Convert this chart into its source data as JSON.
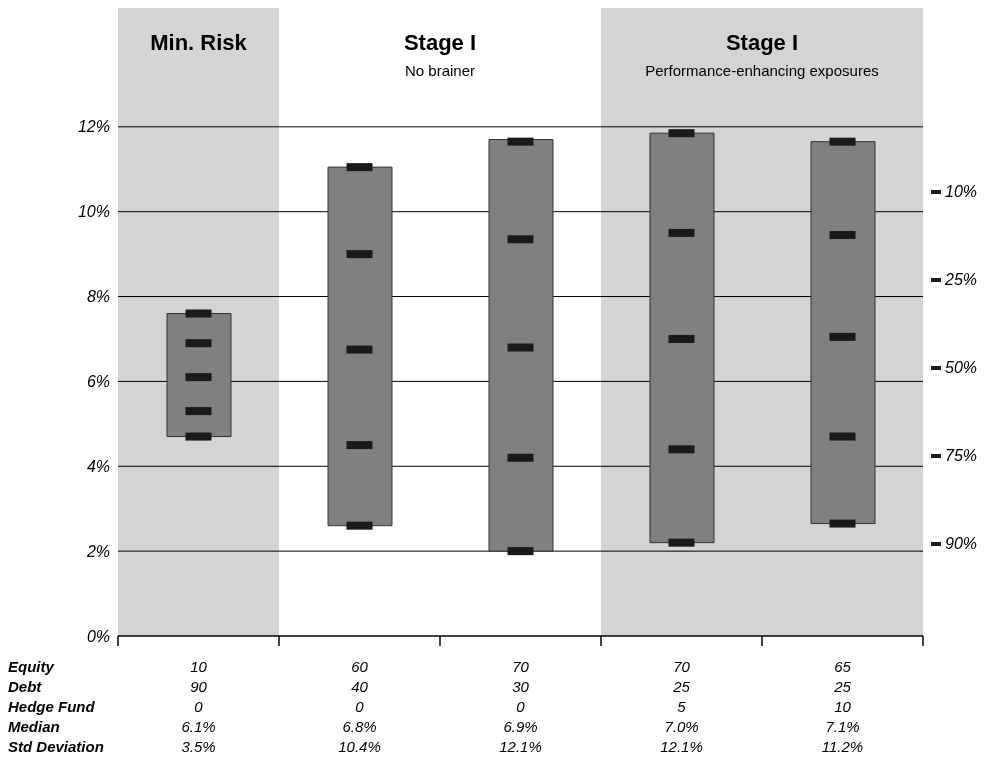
{
  "chart_data": {
    "type": "bar",
    "categories": [
      null,
      null,
      null,
      null,
      null
    ],
    "ylim": [
      0,
      14.8
    ],
    "yticks": [
      {
        "value": 0,
        "label": "0%"
      },
      {
        "value": 2,
        "label": "2%"
      },
      {
        "value": 4,
        "label": "4%"
      },
      {
        "value": 6,
        "label": "6%"
      },
      {
        "value": 8,
        "label": "8%"
      },
      {
        "value": 10,
        "label": "10%"
      },
      {
        "value": 12,
        "label": "12%"
      }
    ],
    "tick_labels": "y",
    "grid": "y",
    "legend": "right",
    "marker": "square",
    "series": [
      {
        "type": "bar",
        "color": "#808080",
        "base": [
          4.7,
          2.6,
          2.0,
          2.2,
          2.65
        ],
        "values": [
          2.9,
          8.45,
          9.7,
          9.65,
          9.0
        ]
      },
      {
        "type": "scatter",
        "name": "10%",
        "color": "#1a1a1a",
        "values": [
          7.6,
          11.05,
          11.65,
          11.85,
          11.65
        ]
      },
      {
        "type": "scatter",
        "name": "25%",
        "color": "#1a1a1a",
        "values": [
          6.9,
          9.0,
          9.35,
          9.5,
          9.45
        ]
      },
      {
        "type": "scatter",
        "name": "50%",
        "color": "#1a1a1a",
        "values": [
          6.1,
          6.75,
          6.8,
          7.0,
          7.05
        ]
      },
      {
        "type": "scatter",
        "name": "75%",
        "color": "#1a1a1a",
        "values": [
          5.3,
          4.5,
          4.2,
          4.4,
          4.7
        ]
      },
      {
        "type": "scatter",
        "name": "90%",
        "color": "#1a1a1a",
        "values": [
          4.7,
          2.6,
          2.0,
          2.2,
          2.65
        ]
      }
    ],
    "annotations": [
      "Min. Risk",
      "Stage I",
      "No brainer",
      "Stage I",
      "Performance-enhancing exposures",
      "Equity",
      "10",
      "60",
      "70",
      "70",
      "65",
      "Debt",
      "90",
      "40",
      "30",
      "25",
      "25",
      "Hedge Fund",
      "0",
      "0",
      "0",
      "5",
      "10",
      "Median",
      "6.1%",
      "6.8%",
      "6.9%",
      "7.0%",
      "7.1%",
      "Std Deviation",
      "3.5%",
      "10.4%",
      "12.1%",
      "12.1%",
      "11.2%"
    ]
  }
}
